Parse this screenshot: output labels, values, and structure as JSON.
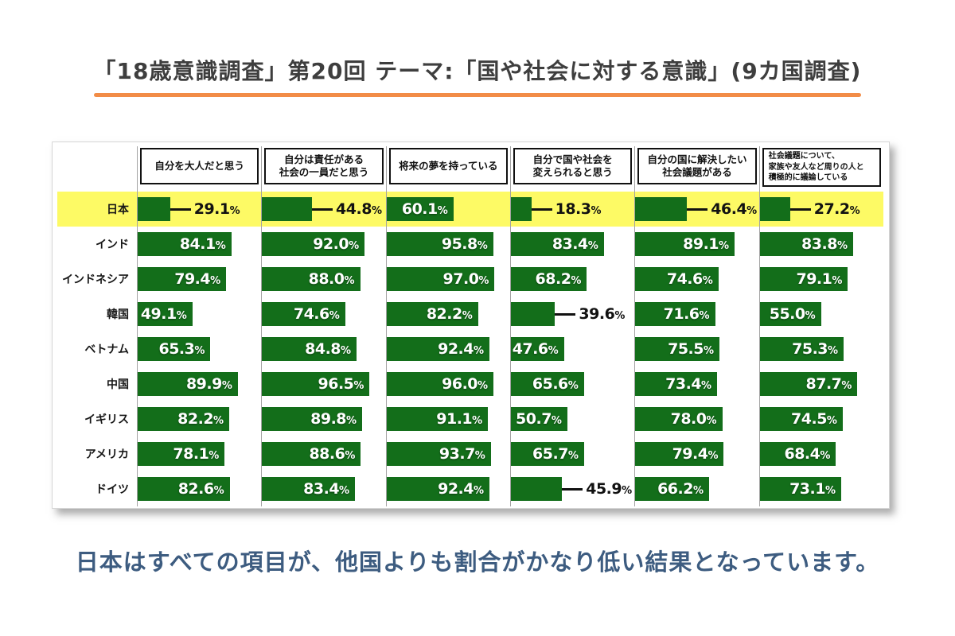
{
  "page": {
    "title": "「18歳意識調査」第20回 テーマ:「国や社会に対する意識」(9カ国調査)",
    "caption": "日本はすべての項目が、他国よりも割合がかなり低い結果となっています。"
  },
  "colors": {
    "bar_green": "#136e1a",
    "highlight_yellow": "#fdfa65",
    "underline_orange": "#f28c47",
    "caption_blue": "#3d5c80"
  },
  "chart_data": {
    "type": "bar",
    "orientation": "horizontal",
    "unit": "%",
    "xlim": [
      0,
      100
    ],
    "value_labels": true,
    "highlight_row": "日本",
    "categories": [
      "自分を大人だと思う",
      "自分は責任がある社会の一員だと思う",
      "将来の夢を持っている",
      "自分で国や社会を変えられると思う",
      "自分の国に解決したい社会議題がある",
      "社会議題について、家族や友人など周りの人と積極的に議論している"
    ],
    "header_lines": [
      [
        "自分を大人だと思う"
      ],
      [
        "自分は責任がある",
        "社会の一員だと思う"
      ],
      [
        "将来の夢を持っている"
      ],
      [
        "自分で国や社会を",
        "変えられると思う"
      ],
      [
        "自分の国に解決したい",
        "社会議題がある"
      ],
      [
        "社会議題について、",
        "家族や友人など周りの人と",
        "積極的に議論している"
      ]
    ],
    "series": [
      {
        "name": "日本",
        "highlight": true,
        "values": [
          29.1,
          44.8,
          60.1,
          18.3,
          46.4,
          27.2
        ],
        "label_outside": [
          true,
          true,
          false,
          true,
          true,
          true
        ]
      },
      {
        "name": "インド",
        "values": [
          84.1,
          92.0,
          95.8,
          83.4,
          89.1,
          83.8
        ],
        "label_outside": [
          false,
          false,
          false,
          false,
          false,
          false
        ]
      },
      {
        "name": "インドネシア",
        "values": [
          79.4,
          88.0,
          97.0,
          68.2,
          74.6,
          79.1
        ],
        "label_outside": [
          false,
          false,
          false,
          false,
          false,
          false
        ]
      },
      {
        "name": "韓国",
        "values": [
          49.1,
          74.6,
          82.2,
          39.6,
          71.6,
          55.0
        ],
        "label_outside": [
          false,
          false,
          false,
          true,
          false,
          false
        ]
      },
      {
        "name": "ベトナム",
        "values": [
          65.3,
          84.8,
          92.4,
          47.6,
          75.5,
          75.3
        ],
        "label_outside": [
          false,
          false,
          false,
          false,
          false,
          false
        ]
      },
      {
        "name": "中国",
        "values": [
          89.9,
          96.5,
          96.0,
          65.6,
          73.4,
          87.7
        ],
        "label_outside": [
          false,
          false,
          false,
          false,
          false,
          false
        ]
      },
      {
        "name": "イギリス",
        "values": [
          82.2,
          89.8,
          91.1,
          50.7,
          78.0,
          74.5
        ],
        "label_outside": [
          false,
          false,
          false,
          false,
          false,
          false
        ]
      },
      {
        "name": "アメリカ",
        "values": [
          78.1,
          88.6,
          93.7,
          65.7,
          79.4,
          68.4
        ],
        "label_outside": [
          false,
          false,
          false,
          false,
          false,
          false
        ]
      },
      {
        "name": "ドイツ",
        "values": [
          82.6,
          83.4,
          92.4,
          45.9,
          66.2,
          73.1
        ],
        "label_outside": [
          false,
          false,
          false,
          true,
          false,
          false
        ]
      }
    ]
  }
}
